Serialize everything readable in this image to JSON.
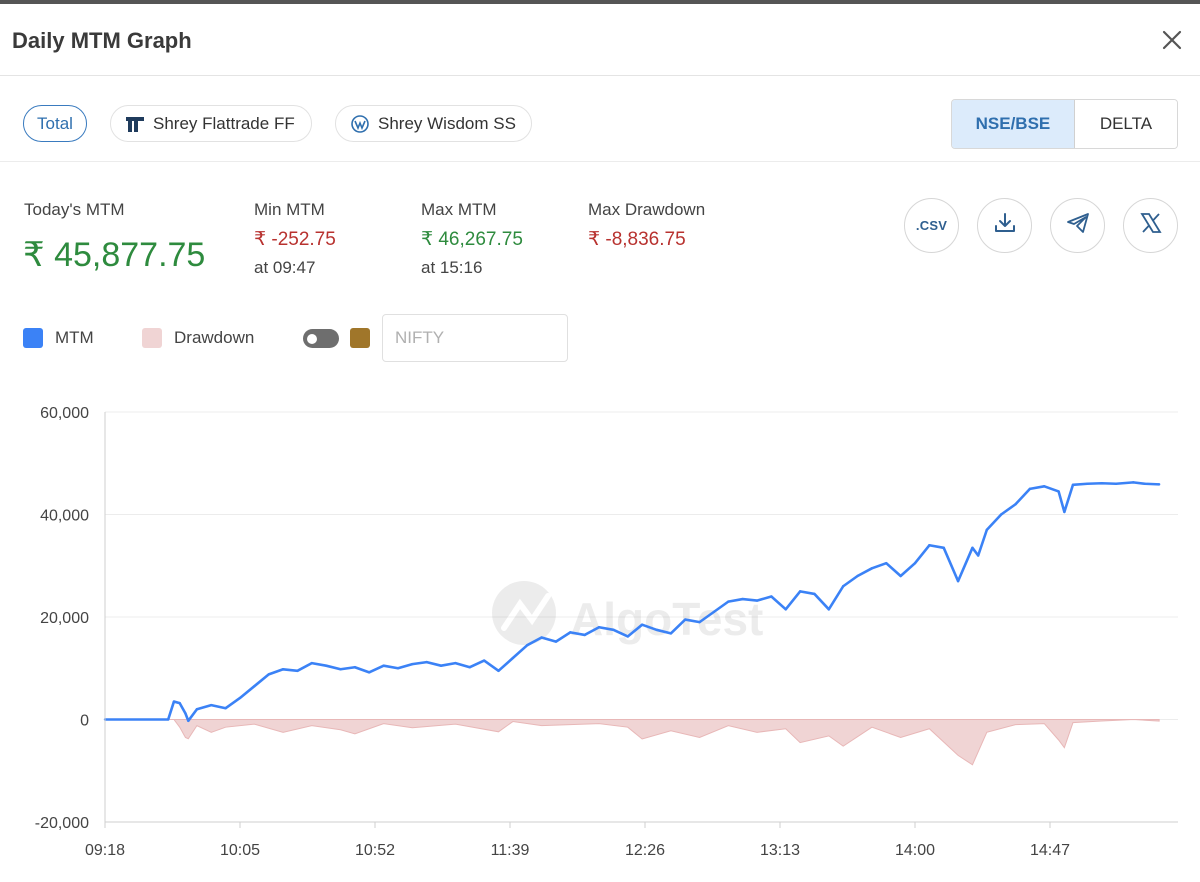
{
  "dialog": {
    "title": "Daily MTM Graph"
  },
  "filters": {
    "chips": [
      {
        "label": "Total",
        "active": true
      },
      {
        "label": "Shrey Flattrade FF",
        "icon": "flattrade-logo-icon"
      },
      {
        "label": "Shrey Wisdom SS",
        "icon": "wisdom-logo-icon"
      }
    ],
    "segment": {
      "options": [
        "NSE/BSE",
        "DELTA"
      ],
      "selected": "NSE/BSE"
    }
  },
  "stats": {
    "today_label": "Today's MTM",
    "today_value": "₹ 45,877.75",
    "min_label": "Min MTM",
    "min_value": "₹ -252.75",
    "min_time": "at 09:47",
    "max_label": "Max MTM",
    "max_value": "₹ 46,267.75",
    "max_time": "at 15:16",
    "drawdown_label": "Max Drawdown",
    "drawdown_value": "₹ -8,836.75"
  },
  "actions": {
    "csv_label": ".CSV",
    "icons": [
      "download-icon",
      "telegram-icon",
      "x-logo-icon"
    ]
  },
  "legend": {
    "mtm": "MTM",
    "drawdown": "Drawdown",
    "nifty_placeholder": "NIFTY",
    "colors": {
      "mtm": "#3b82f6",
      "drawdown": "#f0d4d4",
      "nifty": "#a0762a"
    }
  },
  "chart_data": {
    "type": "line",
    "watermark": "AlgoTest",
    "x_tick_labels": [
      "09:18",
      "10:05",
      "10:52",
      "11:39",
      "12:26",
      "13:13",
      "14:00",
      "14:47"
    ],
    "y_tick_labels": [
      "60,000",
      "40,000",
      "20,000",
      "0",
      "-20,000"
    ],
    "ylim": [
      -20000,
      60000
    ],
    "grid": true,
    "series": [
      {
        "name": "MTM",
        "color": "#3b82f6",
        "x": [
          "09:18",
          "09:40",
          "09:42",
          "09:44",
          "09:46",
          "09:47",
          "09:50",
          "09:55",
          "10:00",
          "10:05",
          "10:10",
          "10:15",
          "10:20",
          "10:25",
          "10:30",
          "10:35",
          "10:40",
          "10:45",
          "10:50",
          "10:55",
          "11:00",
          "11:05",
          "11:10",
          "11:15",
          "11:20",
          "11:25",
          "11:30",
          "11:35",
          "11:40",
          "11:45",
          "11:50",
          "11:55",
          "12:00",
          "12:05",
          "12:10",
          "12:15",
          "12:20",
          "12:25",
          "12:30",
          "12:35",
          "12:40",
          "12:45",
          "12:50",
          "12:55",
          "13:00",
          "13:05",
          "13:10",
          "13:15",
          "13:20",
          "13:25",
          "13:30",
          "13:35",
          "13:40",
          "13:45",
          "13:50",
          "13:55",
          "14:00",
          "14:05",
          "14:10",
          "14:15",
          "14:20",
          "14:22",
          "14:25",
          "14:30",
          "14:35",
          "14:40",
          "14:45",
          "14:50",
          "14:52",
          "14:55",
          "15:00",
          "15:05",
          "15:10",
          "15:16",
          "15:20",
          "15:25"
        ],
        "values": [
          0,
          0,
          3500,
          3200,
          1200,
          -252,
          2000,
          2800,
          2200,
          4200,
          6500,
          8800,
          9800,
          9500,
          11000,
          10500,
          9800,
          10200,
          9200,
          10500,
          10000,
          10800,
          11200,
          10500,
          11000,
          10200,
          11500,
          9500,
          12000,
          14500,
          16000,
          15200,
          17000,
          16500,
          18000,
          17500,
          16200,
          18500,
          17500,
          16800,
          19500,
          19000,
          21000,
          23000,
          23500,
          23200,
          24000,
          21500,
          25000,
          24500,
          21500,
          26000,
          28000,
          29500,
          30500,
          28000,
          30500,
          34000,
          33500,
          27000,
          33500,
          32000,
          37000,
          40000,
          42000,
          45000,
          45500,
          44500,
          40500,
          45800,
          46000,
          46100,
          46000,
          46267,
          46000,
          45877
        ]
      },
      {
        "name": "Drawdown",
        "color": "#f0d4d4",
        "x": [
          "09:18",
          "09:42",
          "09:44",
          "09:46",
          "09:47",
          "09:50",
          "09:55",
          "10:00",
          "10:10",
          "10:20",
          "10:30",
          "10:40",
          "10:45",
          "10:55",
          "11:05",
          "11:20",
          "11:35",
          "11:40",
          "11:50",
          "12:10",
          "12:20",
          "12:25",
          "12:35",
          "12:45",
          "12:55",
          "13:05",
          "13:15",
          "13:20",
          "13:30",
          "13:35",
          "13:45",
          "13:55",
          "14:05",
          "14:15",
          "14:20",
          "14:25",
          "14:35",
          "14:45",
          "14:50",
          "14:52",
          "14:55",
          "15:05",
          "15:16",
          "15:25"
        ],
        "values": [
          0,
          0,
          -1500,
          -3500,
          -3755,
          -1200,
          -2500,
          -1500,
          -900,
          -2500,
          -1200,
          -2000,
          -2800,
          -800,
          -1600,
          -900,
          -2400,
          -400,
          -1200,
          -800,
          -1500,
          -3800,
          -2200,
          -3500,
          -1200,
          -2500,
          -1800,
          -4500,
          -3200,
          -5200,
          -1500,
          -3500,
          -1800,
          -7000,
          -8836,
          -2500,
          -1000,
          -800,
          -4000,
          -5500,
          -600,
          -300,
          0,
          -300
        ]
      }
    ]
  }
}
